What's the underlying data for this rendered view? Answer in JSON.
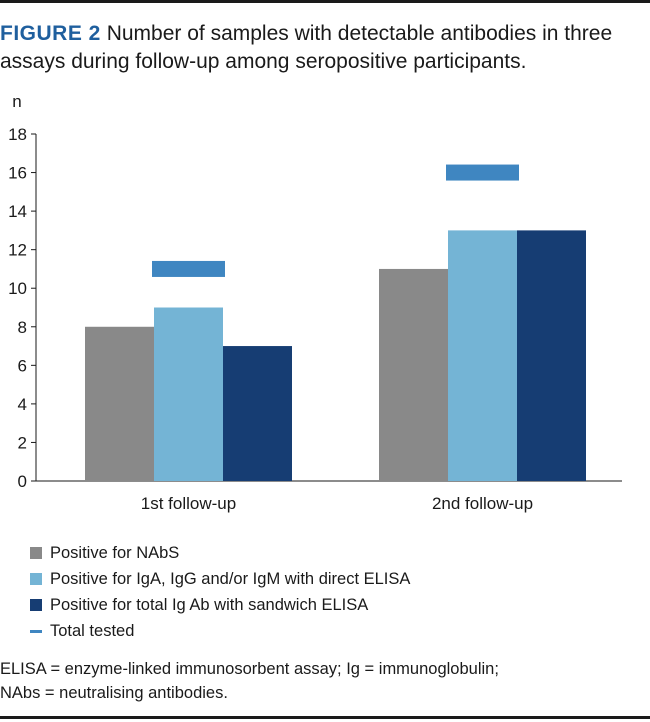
{
  "title": {
    "label": "FIGURE 2",
    "text": "Number of samples with detectable antibodies in three assays during follow-up among seropositive participants."
  },
  "colors": {
    "nabs": "#898989",
    "direct": "#74b4d5",
    "sandwich": "#163d73",
    "total": "#3f86c1",
    "label_accent": "#1f5f9e"
  },
  "chart_data": {
    "type": "bar",
    "ylabel": "n",
    "ylim": [
      0,
      18
    ],
    "yticks": [
      0,
      2,
      4,
      6,
      8,
      10,
      12,
      14,
      16,
      18
    ],
    "categories": [
      "1st follow-up",
      "2nd follow-up"
    ],
    "series": [
      {
        "name": "Positive for NAbS",
        "values": [
          8,
          11
        ],
        "color_key": "nabs"
      },
      {
        "name": "Positive for IgA, IgG and/or IgM with direct ELISA",
        "values": [
          9,
          13
        ],
        "color_key": "direct"
      },
      {
        "name": "Positive for total Ig Ab with sandwich ELISA",
        "values": [
          7,
          13
        ],
        "color_key": "sandwich"
      }
    ],
    "marker_series": {
      "name": "Total tested",
      "values": [
        11,
        16
      ],
      "color_key": "total"
    },
    "grid": false
  },
  "legend": [
    {
      "label": "Positive for NAbS",
      "kind": "swatch",
      "color_key": "nabs"
    },
    {
      "label": "Positive for IgA, IgG and/or IgM with direct ELISA",
      "kind": "swatch",
      "color_key": "direct"
    },
    {
      "label": "Positive for total Ig Ab with sandwich ELISA",
      "kind": "swatch",
      "color_key": "sandwich"
    },
    {
      "label": "Total tested",
      "kind": "dash",
      "color_key": "total"
    }
  ],
  "footnote": {
    "line1": "ELISA = enzyme-linked immunosorbent assay; Ig = immunoglobulin;",
    "line2": "NAbs = neutralising antibodies."
  }
}
